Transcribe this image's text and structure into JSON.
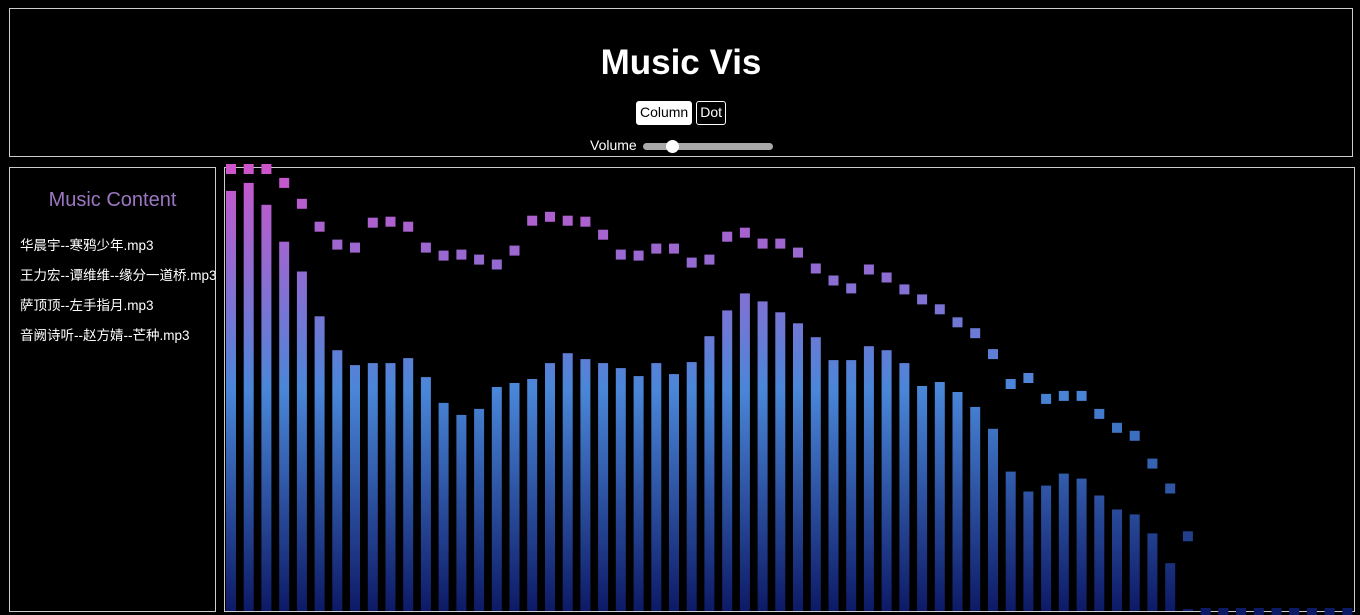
{
  "header": {
    "title": "Music Vis",
    "modes": {
      "column_label": "Column",
      "dot_label": "Dot",
      "selected": "Column"
    },
    "volume": {
      "label": "Volume",
      "level": 0.22
    }
  },
  "sidebar": {
    "title": "Music Content",
    "tracks": [
      "华晨宇--寒鸦少年.mp3",
      "王力宏--谭维维--缘分一道桥.mp3",
      "萨顶顶--左手指月.mp3",
      "音阙诗听--赵方婧--芒种.mp3"
    ]
  },
  "colors": {
    "background": "#000000",
    "border": "#cccccc",
    "gradient_top": "#cc55cc",
    "gradient_mid": "#4a86d8",
    "gradient_bottom": "#0d1a66",
    "sidebar_title": "#9c76c2"
  },
  "chart_data": {
    "type": "bar",
    "max_value": 445,
    "bar_levels": [
      422,
      430,
      408,
      371,
      341,
      296,
      262,
      247,
      249,
      249,
      254,
      235,
      209,
      197,
      203,
      225,
      229,
      233,
      249,
      259,
      253,
      249,
      244,
      236,
      249,
      238,
      250,
      276,
      302,
      319,
      311,
      300,
      289,
      275,
      252,
      252,
      266,
      262,
      249,
      226,
      230,
      220,
      205,
      183,
      140,
      120,
      126,
      138,
      133,
      116,
      102,
      97,
      78,
      48,
      0,
      0,
      0,
      0,
      0,
      0,
      0,
      0,
      0,
      0
    ],
    "cap_levels": [
      440,
      440,
      440,
      425,
      404,
      381,
      363,
      360,
      385,
      386,
      381,
      360,
      352,
      353,
      348,
      343,
      357,
      387,
      391,
      387,
      386,
      373,
      353,
      352,
      359,
      359,
      345,
      348,
      371,
      375,
      364,
      364,
      355,
      339,
      327,
      319,
      338,
      330,
      318,
      308,
      298,
      285,
      274,
      253,
      223,
      229,
      208,
      211,
      211,
      193,
      179,
      171,
      143,
      118,
      70,
      -7,
      -7,
      -7,
      -7,
      -7,
      -7,
      -7,
      -7,
      -7
    ]
  }
}
